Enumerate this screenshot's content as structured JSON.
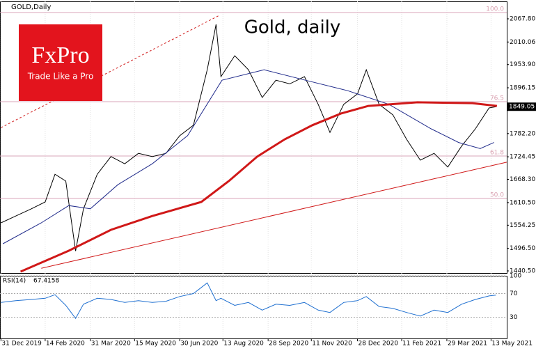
{
  "chart_data": {
    "type": "line",
    "title": "GOLD,Daily",
    "annotation": "Gold, daily",
    "logo": {
      "brand": "FxPro",
      "tagline": "Trade Like a Pro"
    },
    "x": [
      "2019-12-31",
      "2020-01-15",
      "2020-01-31",
      "2020-02-14",
      "2020-02-24",
      "2020-03-06",
      "2020-03-16",
      "2020-03-24",
      "2020-04-07",
      "2020-04-21",
      "2020-05-05",
      "2020-05-19",
      "2020-06-02",
      "2020-06-16",
      "2020-06-30",
      "2020-07-14",
      "2020-07-28",
      "2020-08-06",
      "2020-08-11",
      "2020-08-25",
      "2020-09-08",
      "2020-09-22",
      "2020-10-06",
      "2020-10-20",
      "2020-11-04",
      "2020-11-18",
      "2020-11-30",
      "2020-12-14",
      "2020-12-28",
      "2021-01-06",
      "2021-01-19",
      "2021-02-02",
      "2021-02-16",
      "2021-03-02",
      "2021-03-16",
      "2021-03-30",
      "2021-04-13",
      "2021-04-27",
      "2021-05-11",
      "2021-05-18"
    ],
    "xlim": [
      "2019-12-30",
      "2021-05-29"
    ],
    "xticks": [
      {
        "value": "2019-12-31",
        "label": "31 Dec 2019"
      },
      {
        "value": "2020-02-14",
        "label": "14 Feb 2020"
      },
      {
        "value": "2020-03-31",
        "label": "31 Mar 2020"
      },
      {
        "value": "2020-05-15",
        "label": "15 May 2020"
      },
      {
        "value": "2020-06-30",
        "label": "30 Jun 2020"
      },
      {
        "value": "2020-08-13",
        "label": "13 Aug 2020"
      },
      {
        "value": "2020-09-28",
        "label": "28 Sep 2020"
      },
      {
        "value": "2020-11-11",
        "label": "11 Nov 2020"
      },
      {
        "value": "2020-12-28",
        "label": "28 Dec 2020"
      },
      {
        "value": "2021-02-11",
        "label": "11 Feb 2021"
      },
      {
        "value": "2021-03-29",
        "label": "29 Mar 2021"
      },
      {
        "value": "2021-05-13",
        "label": "13 May 2021"
      }
    ],
    "ylim": [
      1435.3,
      2111.1
    ],
    "yticks": [
      {
        "value": 2067.8,
        "label": "2067.80"
      },
      2010.06,
      {
        "value": 1953.9,
        "label": "1953.90"
      },
      1896.15,
      {
        "value": 1782.2,
        "label": "1782.20"
      },
      1724.45,
      {
        "value": 1668.3,
        "label": "1668.30"
      },
      {
        "value": 1610.5,
        "label": "1610.50"
      },
      1554.25,
      {
        "value": 1496.5,
        "label": "1496.50"
      },
      {
        "value": 1440.5,
        "label": "1440.50"
      }
    ],
    "last_price": 1849.05,
    "series": [
      {
        "color": "#000000",
        "values": [
          1560,
          1577,
          1595,
          1612,
          1681,
          1664,
          1490,
          1595,
          1681,
          1725,
          1707,
          1733,
          1725,
          1733,
          1777,
          1803,
          1941,
          2054,
          1924,
          1976,
          1941,
          1872,
          1915,
          1906,
          1924,
          1855,
          1785,
          1855,
          1881,
          1941,
          1855,
          1829,
          1768,
          1716,
          1733,
          1699,
          1751,
          1794,
          1846,
          1849
        ]
      },
      {
        "color": "#1f2a8a",
        "x": [
          "2020-01-02",
          "2020-02-10",
          "2020-03-09",
          "2020-03-31",
          "2020-04-28",
          "2020-06-02",
          "2020-07-08",
          "2020-08-12",
          "2020-09-24",
          "2020-11-05",
          "2020-12-18",
          "2021-01-29",
          "2021-03-13",
          "2021-04-10",
          "2021-05-02",
          "2021-05-16"
        ],
        "values": [
          1508,
          1560,
          1603,
          1595,
          1655,
          1707,
          1777,
          1915,
          1941,
          1915,
          1889,
          1855,
          1794,
          1760,
          1745,
          1760
        ]
      },
      {
        "color": "#d01818",
        "x": [
          "2020-01-20",
          "2020-03-09",
          "2020-04-21",
          "2020-06-02",
          "2020-07-22",
          "2020-08-19",
          "2020-09-17",
          "2020-10-15",
          "2020-11-12",
          "2020-12-11",
          "2021-01-08",
          "2021-02-27",
          "2021-04-24",
          "2021-05-19"
        ],
        "values": [
          1438.7,
          1490.7,
          1542.7,
          1577,
          1612,
          1664,
          1725,
          1768,
          1803,
          1832,
          1851,
          1860,
          1858,
          1851
        ]
      }
    ],
    "trendlines": [
      {
        "color": "#d01818",
        "dashed": true,
        "x": [
          "2019-12-31",
          "2020-08-09"
        ],
        "values": [
          1797,
          2076
        ]
      },
      {
        "color": "#d01818",
        "dashed": false,
        "x": [
          "2020-02-10",
          "2021-05-29"
        ],
        "values": [
          1447,
          1711
        ]
      }
    ],
    "fib_levels": [
      {
        "label": "100.0",
        "price": 2083.4
      },
      {
        "label": "76.5",
        "price": 1861.6
      },
      {
        "label": "61.8",
        "price": 1726.4
      },
      {
        "label": "50.0",
        "price": 1620.7
      }
    ],
    "rsi": {
      "label": "RSI(14)",
      "color": "#1e6fd0",
      "values": [
        55,
        58,
        60,
        62,
        68,
        50,
        28,
        52,
        62,
        60,
        55,
        58,
        55,
        57,
        65,
        70,
        88,
        58,
        62,
        50,
        55,
        42,
        52,
        50,
        55,
        42,
        38,
        55,
        58,
        65,
        48,
        45,
        38,
        32,
        42,
        38,
        52,
        60,
        66,
        67.4158
      ],
      "ylim": [
        -7,
        100
      ],
      "yticks": [
        100,
        70,
        30
      ]
    }
  }
}
